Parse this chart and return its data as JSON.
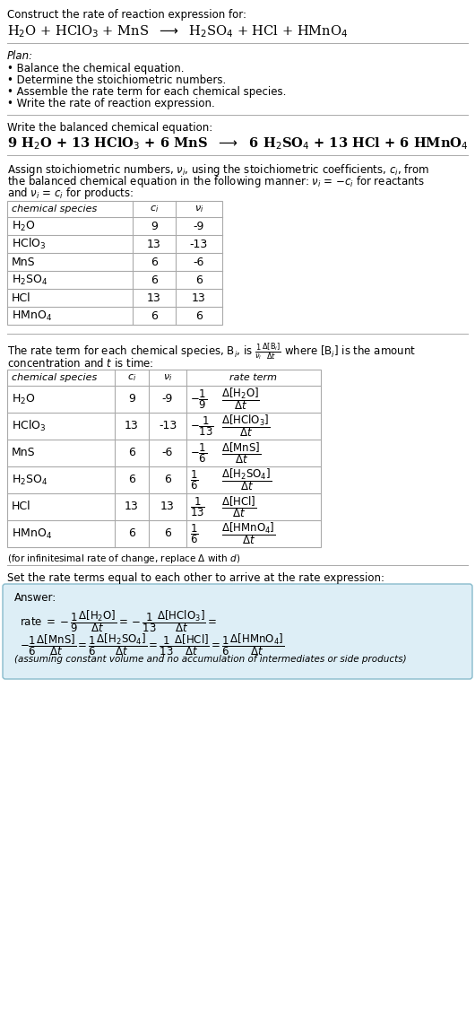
{
  "bg_color": "#ffffff",
  "text_color": "#000000",
  "table_border_color": "#aaaaaa",
  "answer_box_color": "#ddeef6",
  "answer_border_color": "#88bbcc",
  "species_list": [
    "H_2O",
    "HClO_3",
    "MnS",
    "H_2SO_4",
    "HCl",
    "HMnO_4"
  ],
  "ci_list": [
    "9",
    "13",
    "6",
    "6",
    "13",
    "6"
  ],
  "vi_list": [
    "-9",
    "-13",
    "-6",
    "6",
    "13",
    "6"
  ]
}
